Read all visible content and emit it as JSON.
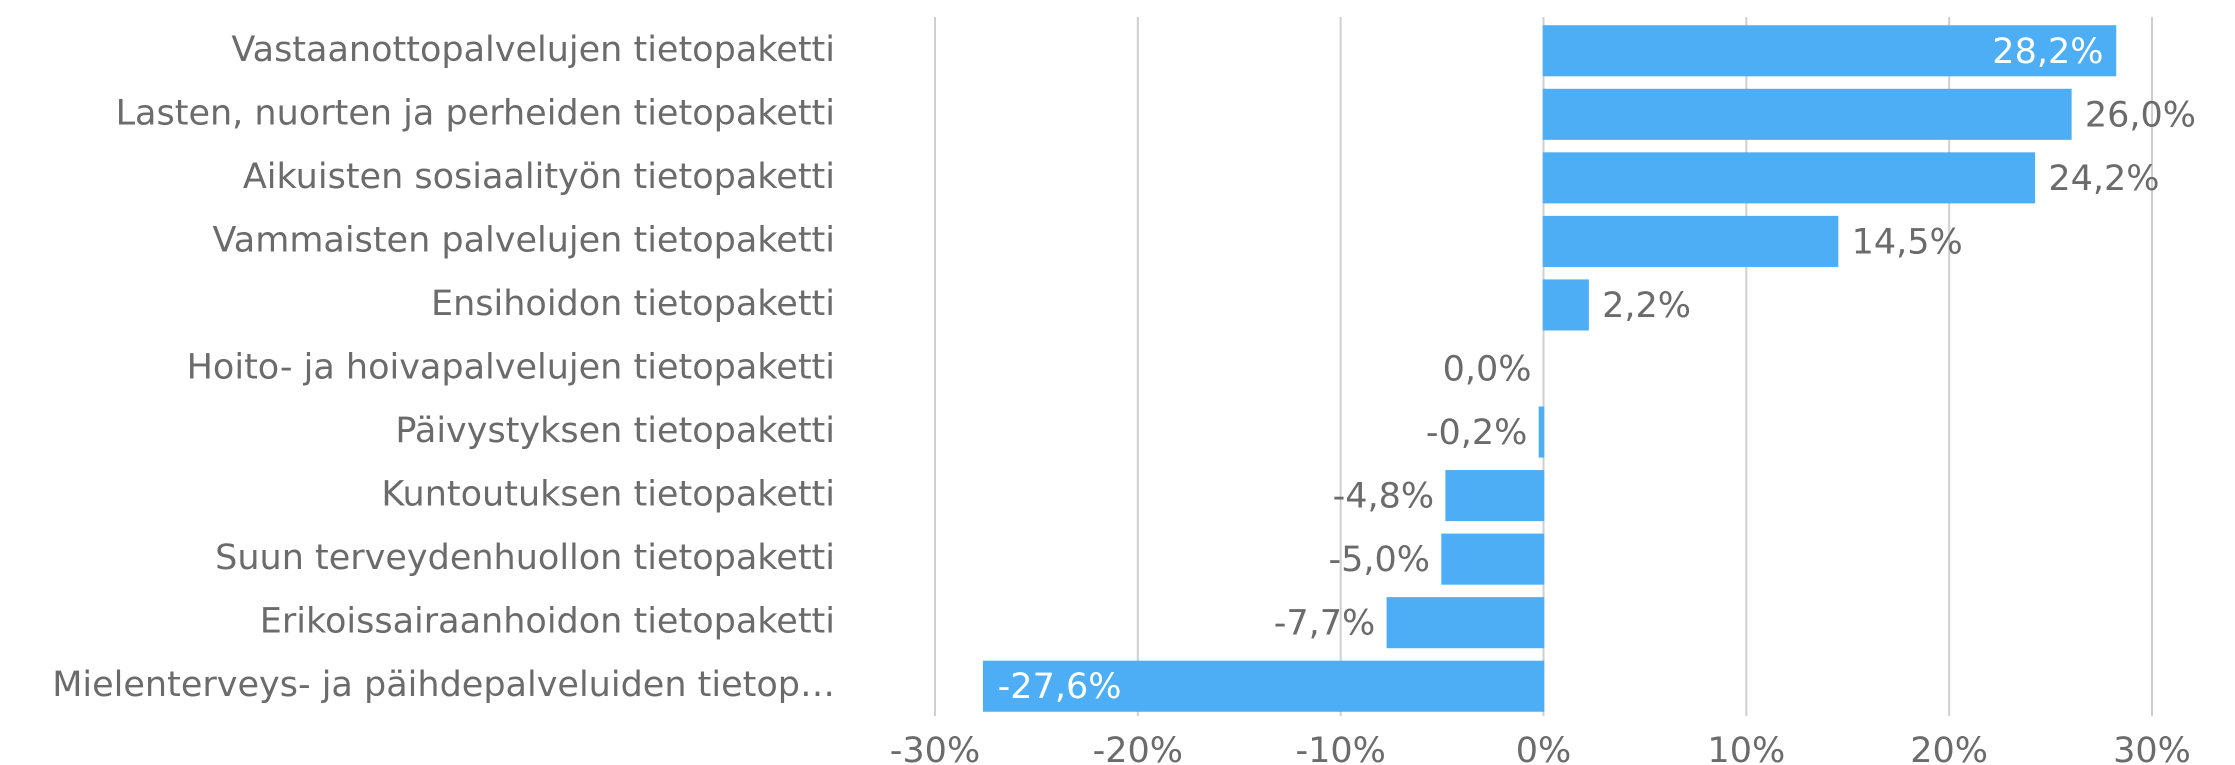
{
  "chart_data": {
    "type": "barh",
    "categories": [
      "Vastaanottopalvelujen tietopaketti",
      "Lasten, nuorten ja perheiden tietopaketti",
      "Aikuisten sosiaalityön tietopaketti",
      "Vammaisten palvelujen tietopaketti",
      "Ensihoidon tietopaketti",
      "Hoito- ja hoivapalvelujen tietopaketti",
      "Päivystyksen tietopaketti",
      "Kuntoutuksen tietopaketti",
      "Suun terveydenhuollon tietopaketti",
      "Erikoissairaanhoidon tietopaketti",
      "Mielenterveys- ja päihdepalveluiden tietop…"
    ],
    "values": [
      28.2,
      26.0,
      24.2,
      14.5,
      2.2,
      0.0,
      -0.2,
      -4.8,
      -5.0,
      -7.7,
      -27.6
    ],
    "value_labels": [
      "28,2%",
      "26,0%",
      "24,2%",
      "14,5%",
      "2,2%",
      "0,0%",
      "-0,2%",
      "-4,8%",
      "-5,0%",
      "-7,7%",
      "-27,6%"
    ],
    "color": "#4daef6",
    "xlim": [
      -30,
      30
    ],
    "xticks": [
      {
        "value": -30,
        "label": "-30%"
      },
      {
        "value": -20,
        "label": "-20%"
      },
      {
        "value": -10,
        "label": "-10%"
      },
      {
        "value": 0,
        "label": "0%"
      },
      {
        "value": 10,
        "label": "10%"
      },
      {
        "value": 20,
        "label": "20%"
      },
      {
        "value": 30,
        "label": "30%"
      }
    ],
    "grid": true
  }
}
